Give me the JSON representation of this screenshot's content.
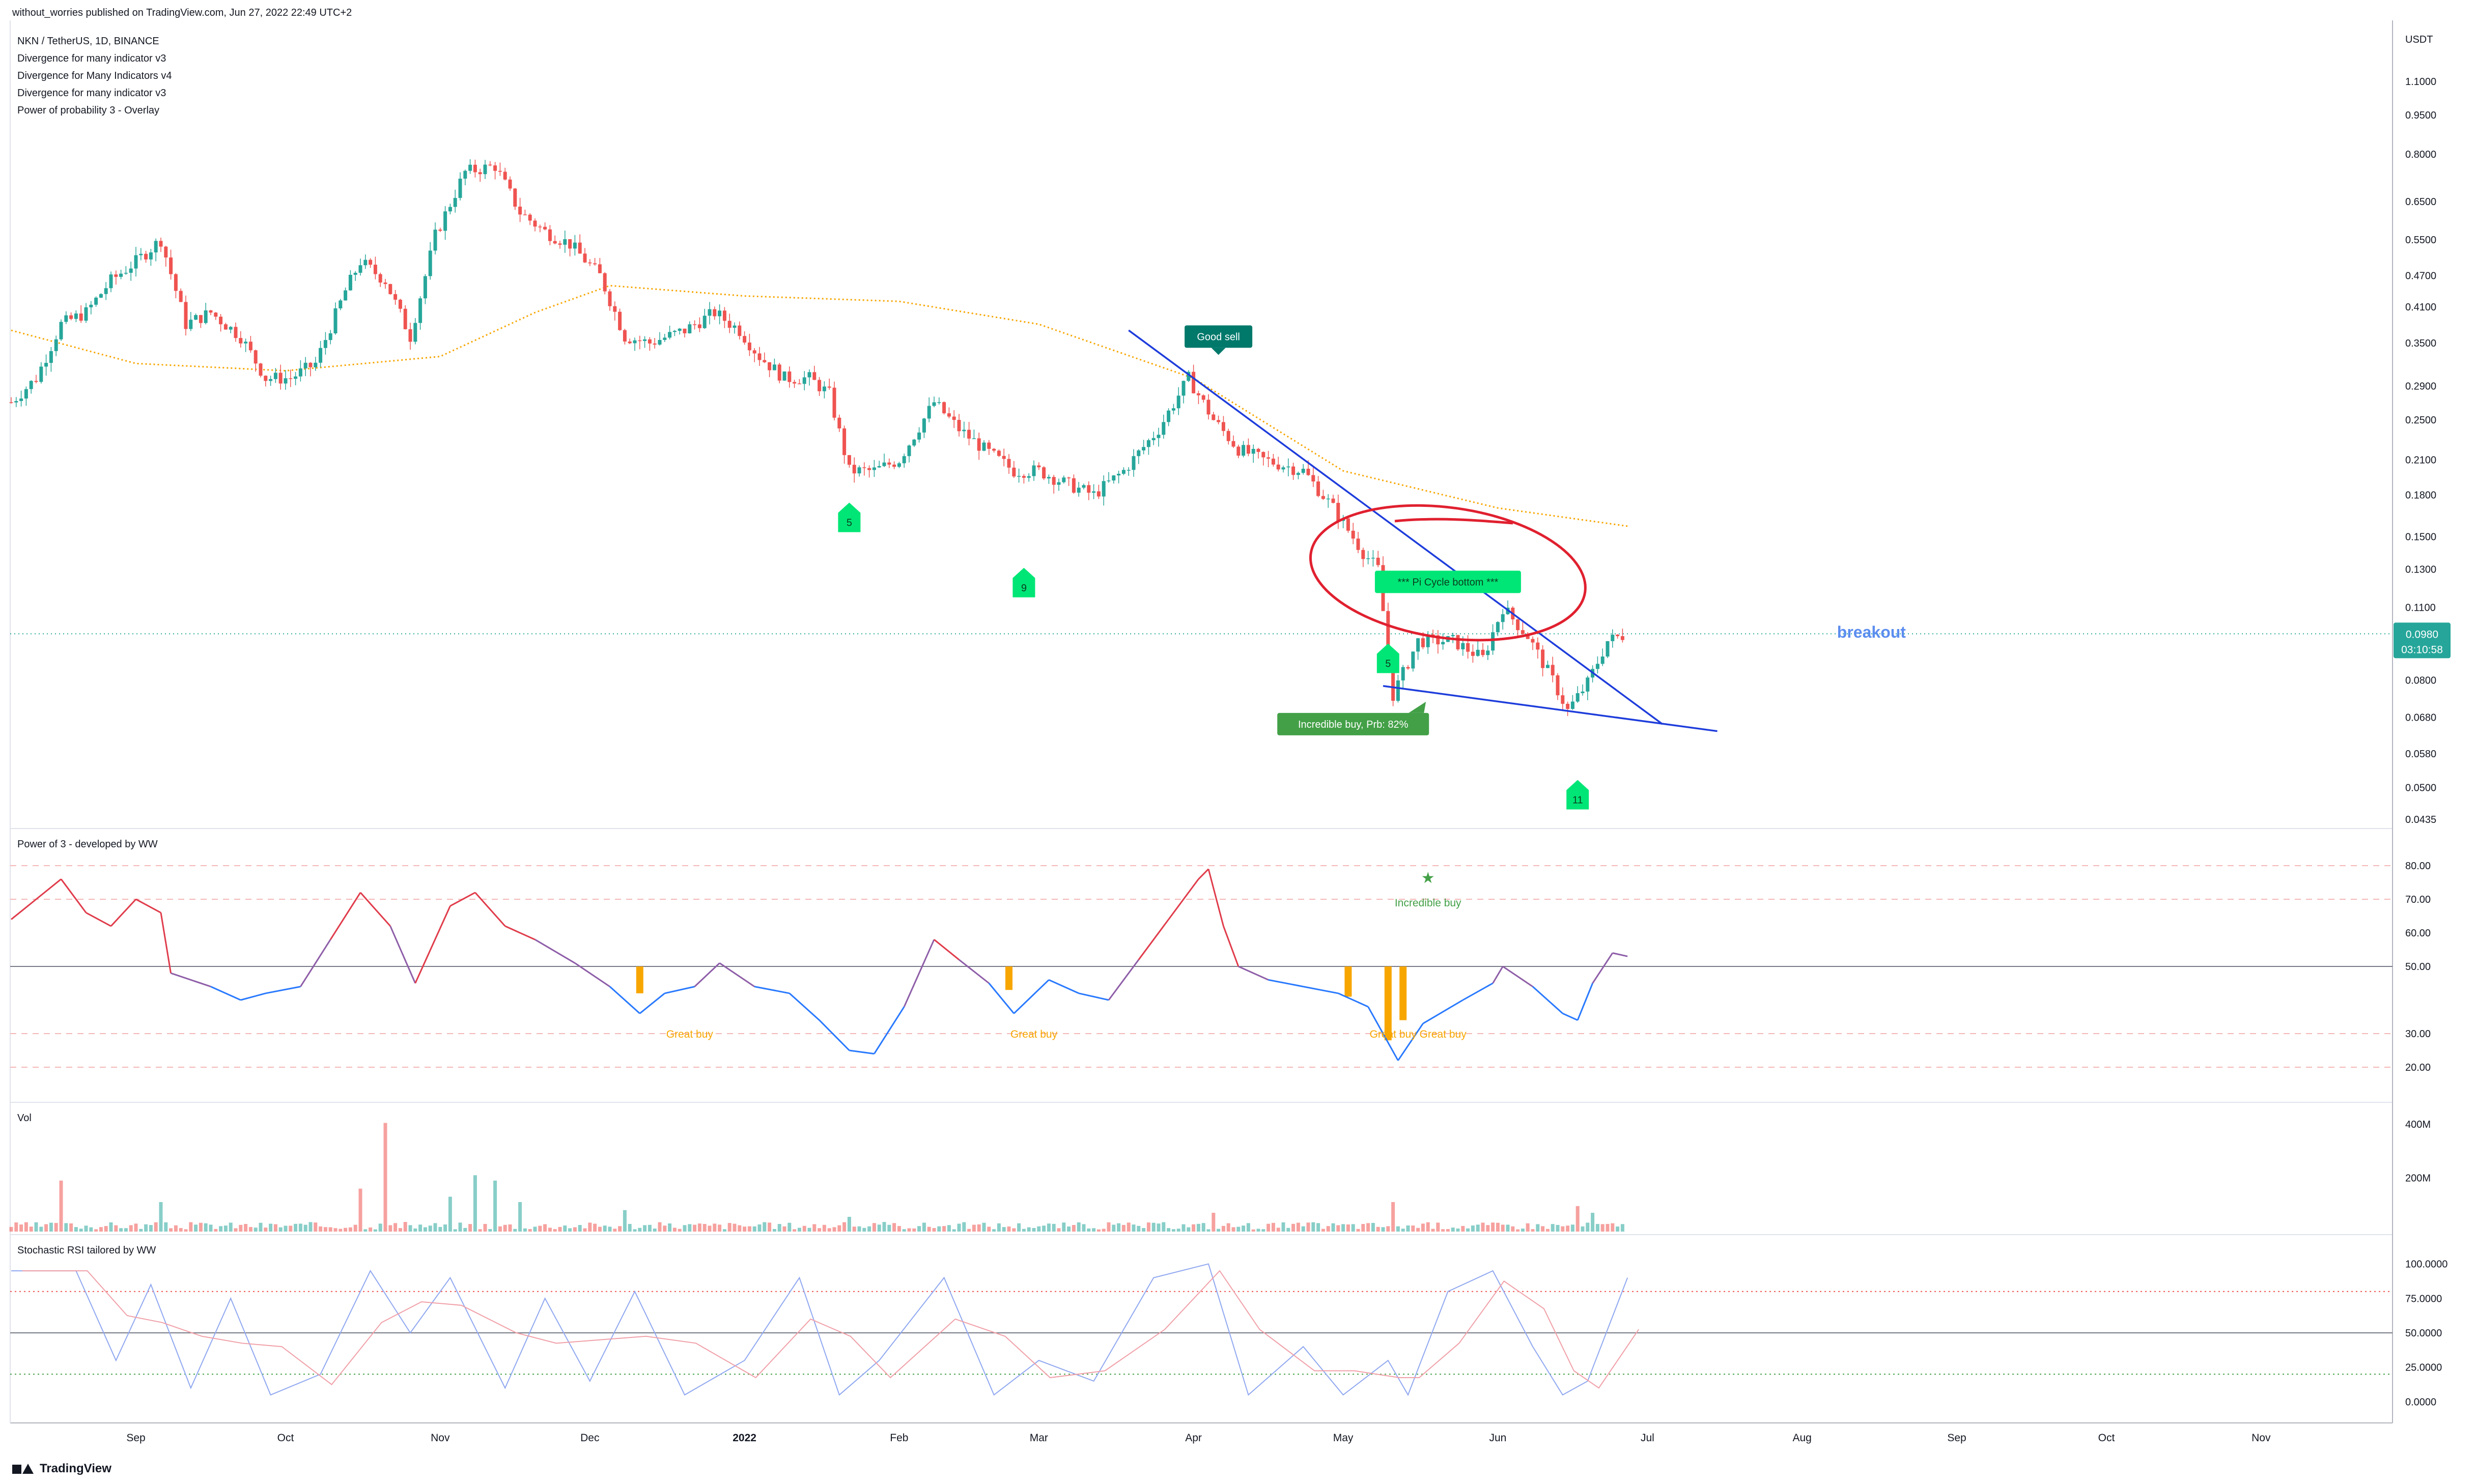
{
  "header": {
    "published": "without_worries published on TradingView.com, Jun 27, 2022 22:49 UTC+2",
    "symbol_line": "NKN / TetherUS, 1D, BINANCE",
    "indicators": [
      "Divergence for many indicator v3",
      "Divergence for Many Indicators v4",
      "Divergence for many indicator v3",
      "Power of probability 3 - Overlay"
    ]
  },
  "footer": {
    "brand": "TradingView"
  },
  "chart_data": [
    {
      "id": "price",
      "type": "candlestick",
      "title": "NKN / TetherUS, 1D, BINANCE",
      "currency_label": "USDT",
      "scale": "log",
      "ylim": [
        0.0435,
        1.1
      ],
      "yticks": [
        "1.1000",
        "0.9500",
        "0.8000",
        "0.6500",
        "0.5500",
        "0.4700",
        "0.4100",
        "0.3500",
        "0.2900",
        "0.2500",
        "0.2100",
        "0.1800",
        "0.1500",
        "0.1300",
        "0.1100",
        "0.0800",
        "0.0680",
        "0.0580",
        "0.0500",
        "0.0435"
      ],
      "xticks": [
        "Sep",
        "Oct",
        "Nov",
        "Dec",
        "2022",
        "Feb",
        "Mar",
        "Apr",
        "May",
        "Jun",
        "Jul",
        "Aug",
        "Sep",
        "Oct",
        "Nov"
      ],
      "last_price": "0.0980",
      "countdown": "03:10:58",
      "close_path": [
        [
          "2021-08-07",
          0.27
        ],
        [
          "2021-08-12",
          0.3
        ],
        [
          "2021-08-17",
          0.38
        ],
        [
          "2021-08-22",
          0.4
        ],
        [
          "2021-08-27",
          0.46
        ],
        [
          "2021-09-01",
          0.5
        ],
        [
          "2021-09-06",
          0.55
        ],
        [
          "2021-09-11",
          0.38
        ],
        [
          "2021-09-16",
          0.4
        ],
        [
          "2021-09-22",
          0.36
        ],
        [
          "2021-09-27",
          0.3
        ],
        [
          "2021-10-02",
          0.3
        ],
        [
          "2021-10-07",
          0.32
        ],
        [
          "2021-10-13",
          0.44
        ],
        [
          "2021-10-16",
          0.5
        ],
        [
          "2021-10-21",
          0.46
        ],
        [
          "2021-10-26",
          0.36
        ],
        [
          "2021-10-31",
          0.56
        ],
        [
          "2021-11-06",
          0.74
        ],
        [
          "2021-11-12",
          0.76
        ],
        [
          "2021-11-17",
          0.62
        ],
        [
          "2021-11-22",
          0.57
        ],
        [
          "2021-11-27",
          0.54
        ],
        [
          "2021-12-03",
          0.47
        ],
        [
          "2021-12-08",
          0.36
        ],
        [
          "2021-12-13",
          0.35
        ],
        [
          "2021-12-20",
          0.37
        ],
        [
          "2021-12-26",
          0.4
        ],
        [
          "2021-12-31",
          0.37
        ],
        [
          "2022-01-04",
          0.33
        ],
        [
          "2022-01-09",
          0.3
        ],
        [
          "2022-01-14",
          0.3
        ],
        [
          "2022-01-18",
          0.28
        ],
        [
          "2022-01-22",
          0.2
        ],
        [
          "2022-01-27",
          0.2
        ],
        [
          "2022-02-01",
          0.21
        ],
        [
          "2022-02-08",
          0.27
        ],
        [
          "2022-02-13",
          0.24
        ],
        [
          "2022-02-18",
          0.22
        ],
        [
          "2022-02-24",
          0.2
        ],
        [
          "2022-03-01",
          0.2
        ],
        [
          "2022-03-06",
          0.19
        ],
        [
          "2022-03-12",
          0.18
        ],
        [
          "2022-03-18",
          0.2
        ],
        [
          "2022-03-25",
          0.24
        ],
        [
          "2022-03-31",
          0.3
        ],
        [
          "2022-04-05",
          0.25
        ],
        [
          "2022-04-10",
          0.22
        ],
        [
          "2022-04-15",
          0.21
        ],
        [
          "2022-04-23",
          0.2
        ],
        [
          "2022-04-29",
          0.17
        ],
        [
          "2022-05-05",
          0.14
        ],
        [
          "2022-05-08",
          0.13
        ],
        [
          "2022-05-11",
          0.075
        ],
        [
          "2022-05-16",
          0.095
        ],
        [
          "2022-05-23",
          0.095
        ],
        [
          "2022-05-29",
          0.088
        ],
        [
          "2022-06-02",
          0.11
        ],
        [
          "2022-06-07",
          0.097
        ],
        [
          "2022-06-12",
          0.08
        ],
        [
          "2022-06-15",
          0.07
        ],
        [
          "2022-06-19",
          0.079
        ],
        [
          "2022-06-23",
          0.095
        ],
        [
          "2022-06-27",
          0.098
        ]
      ],
      "moving_average": [
        [
          "2021-08-07",
          0.37
        ],
        [
          "2021-09-01",
          0.32
        ],
        [
          "2021-10-01",
          0.31
        ],
        [
          "2021-11-01",
          0.33
        ],
        [
          "2021-11-20",
          0.4
        ],
        [
          "2021-12-05",
          0.45
        ],
        [
          "2022-01-01",
          0.43
        ],
        [
          "2022-02-01",
          0.42
        ],
        [
          "2022-03-01",
          0.38
        ],
        [
          "2022-04-01",
          0.3
        ],
        [
          "2022-05-01",
          0.2
        ],
        [
          "2022-06-01",
          0.17
        ],
        [
          "2022-06-27",
          0.157
        ]
      ],
      "trendlines": [
        {
          "from": [
            "2022-03-19",
            0.37
          ],
          "to": [
            "2022-07-04",
            0.066
          ],
          "color": "#1e3ddb"
        },
        {
          "from": [
            "2022-05-09",
            0.078
          ],
          "to": [
            "2022-07-15",
            0.064
          ],
          "color": "#1e3ddb"
        }
      ],
      "ellipse_center": [
        "2022-05-22",
        0.128
      ],
      "annotations": [
        {
          "text": "Good sell",
          "kind": "label-down",
          "color": "#00796b",
          "date": "2022-04-06",
          "price": 0.36
        },
        {
          "text": "*** Pi Cycle bottom ***",
          "kind": "label",
          "color": "#00e676",
          "date": "2022-05-22",
          "price": 0.123
        },
        {
          "text": "Incredible buy, Prb: 82%",
          "kind": "label-up",
          "color": "#43a047",
          "date": "2022-05-03",
          "price": 0.066
        },
        {
          "text": "5",
          "kind": "tag",
          "color": "#00e676",
          "date": "2022-01-22",
          "price": 0.165
        },
        {
          "text": "9",
          "kind": "tag",
          "color": "#00e676",
          "date": "2022-02-26",
          "price": 0.124
        },
        {
          "text": "5",
          "kind": "tag",
          "color": "#00e676",
          "date": "2022-05-10",
          "price": 0.089
        },
        {
          "text": "11",
          "kind": "tag",
          "color": "#00e676",
          "date": "2022-06-17",
          "price": 0.049
        },
        {
          "text": "breakout",
          "kind": "text",
          "color": "#5b8def",
          "date": "2022-08-08",
          "price": 0.0985
        }
      ]
    },
    {
      "id": "power3",
      "type": "line",
      "title": "Power of 3 - developed by WW",
      "ylim": [
        15,
        85
      ],
      "yticks": [
        "80.00",
        "70.00",
        "60.00",
        "50.00",
        "30.00",
        "20.00"
      ],
      "levels": [
        80,
        70,
        50,
        30,
        20
      ],
      "series": [
        [
          "2021-08-07",
          64
        ],
        [
          "2021-08-12",
          70
        ],
        [
          "2021-08-17",
          76
        ],
        [
          "2021-08-22",
          66
        ],
        [
          "2021-08-27",
          62
        ],
        [
          "2021-09-01",
          70
        ],
        [
          "2021-09-06",
          66
        ],
        [
          "2021-09-08",
          48
        ],
        [
          "2021-09-16",
          44
        ],
        [
          "2021-09-22",
          40
        ],
        [
          "2021-09-27",
          42
        ],
        [
          "2021-10-04",
          44
        ],
        [
          "2021-10-10",
          58
        ],
        [
          "2021-10-16",
          72
        ],
        [
          "2021-10-22",
          62
        ],
        [
          "2021-10-27",
          45
        ],
        [
          "2021-11-03",
          68
        ],
        [
          "2021-11-08",
          72
        ],
        [
          "2021-11-14",
          62
        ],
        [
          "2021-11-20",
          58
        ],
        [
          "2021-11-28",
          51
        ],
        [
          "2021-12-05",
          44
        ],
        [
          "2021-12-11",
          36
        ],
        [
          "2021-12-16",
          42
        ],
        [
          "2021-12-22",
          44
        ],
        [
          "2021-12-27",
          51
        ],
        [
          "2022-01-03",
          44
        ],
        [
          "2022-01-10",
          42
        ],
        [
          "2022-01-16",
          34
        ],
        [
          "2022-01-22",
          25
        ],
        [
          "2022-01-27",
          24
        ],
        [
          "2022-02-02",
          38
        ],
        [
          "2022-02-08",
          58
        ],
        [
          "2022-02-13",
          52
        ],
        [
          "2022-02-19",
          45
        ],
        [
          "2022-02-24",
          36
        ],
        [
          "2022-03-03",
          46
        ],
        [
          "2022-03-09",
          42
        ],
        [
          "2022-03-15",
          40
        ],
        [
          "2022-03-21",
          52
        ],
        [
          "2022-03-27",
          64
        ],
        [
          "2022-04-02",
          76
        ],
        [
          "2022-04-04",
          79
        ],
        [
          "2022-04-07",
          62
        ],
        [
          "2022-04-10",
          50
        ],
        [
          "2022-04-16",
          46
        ],
        [
          "2022-04-23",
          44
        ],
        [
          "2022-04-30",
          42
        ],
        [
          "2022-05-06",
          38
        ],
        [
          "2022-05-09",
          30
        ],
        [
          "2022-05-12",
          22
        ],
        [
          "2022-05-17",
          33
        ],
        [
          "2022-05-25",
          40
        ],
        [
          "2022-05-31",
          45
        ],
        [
          "2022-06-02",
          50
        ],
        [
          "2022-06-08",
          44
        ],
        [
          "2022-06-14",
          36
        ],
        [
          "2022-06-17",
          34
        ],
        [
          "2022-06-20",
          45
        ],
        [
          "2022-06-24",
          54
        ],
        [
          "2022-06-27",
          53
        ]
      ],
      "bars": [
        {
          "date": "2021-12-11",
          "from": 50,
          "to": 42
        },
        {
          "date": "2022-02-23",
          "from": 50,
          "to": 43
        },
        {
          "date": "2022-05-02",
          "from": 50,
          "to": 41
        },
        {
          "date": "2022-05-10",
          "from": 50,
          "to": 28
        },
        {
          "date": "2022-05-13",
          "from": 50,
          "to": 34
        }
      ],
      "annotations": [
        {
          "text": "Great buy",
          "date": "2021-12-21",
          "value": 30,
          "color": "#f7a600"
        },
        {
          "text": "Great buy",
          "date": "2022-02-28",
          "value": 30,
          "color": "#f7a600"
        },
        {
          "text": "Great buy",
          "date": "2022-05-11",
          "value": 30,
          "color": "#f7a600"
        },
        {
          "text": "Great buy",
          "date": "2022-05-21",
          "value": 30,
          "color": "#f7a600"
        },
        {
          "text": "Incredible buy",
          "date": "2022-05-18",
          "value": 70,
          "color": "#43a047"
        }
      ]
    },
    {
      "id": "volume",
      "type": "bar",
      "title": "Vol",
      "yticks": [
        "400M",
        "200M"
      ],
      "ylim": [
        0,
        440
      ],
      "unit": "M",
      "spikes": [
        [
          "2021-08-17",
          190
        ],
        [
          "2021-09-06",
          110
        ],
        [
          "2021-10-16",
          160
        ],
        [
          "2021-10-21",
          405
        ],
        [
          "2021-11-03",
          130
        ],
        [
          "2021-11-08",
          210
        ],
        [
          "2021-11-12",
          190
        ],
        [
          "2021-11-17",
          110
        ],
        [
          "2021-12-08",
          80
        ],
        [
          "2022-01-22",
          55
        ],
        [
          "2022-04-05",
          70
        ],
        [
          "2022-05-11",
          110
        ],
        [
          "2022-06-17",
          95
        ],
        [
          "2022-06-20",
          70
        ]
      ]
    },
    {
      "id": "stochrsi",
      "type": "line",
      "title": "Stochastic RSI tailored by WW",
      "ylim": [
        -5,
        105
      ],
      "yticks": [
        "100.0000",
        "75.0000",
        "50.0000",
        "25.0000",
        "0.0000"
      ],
      "levels": [
        80,
        50,
        20
      ],
      "k_line": [
        [
          "2021-08-07",
          95
        ],
        [
          "2021-08-20",
          95
        ],
        [
          "2021-08-28",
          30
        ],
        [
          "2021-09-04",
          85
        ],
        [
          "2021-09-12",
          10
        ],
        [
          "2021-09-20",
          75
        ],
        [
          "2021-09-28",
          5
        ],
        [
          "2021-10-08",
          20
        ],
        [
          "2021-10-18",
          95
        ],
        [
          "2021-10-26",
          50
        ],
        [
          "2021-11-03",
          90
        ],
        [
          "2021-11-14",
          10
        ],
        [
          "2021-11-22",
          75
        ],
        [
          "2021-12-01",
          15
        ],
        [
          "2021-12-10",
          80
        ],
        [
          "2021-12-20",
          5
        ],
        [
          "2022-01-01",
          30
        ],
        [
          "2022-01-12",
          90
        ],
        [
          "2022-01-20",
          5
        ],
        [
          "2022-01-28",
          30
        ],
        [
          "2022-02-10",
          90
        ],
        [
          "2022-02-20",
          5
        ],
        [
          "2022-03-01",
          30
        ],
        [
          "2022-03-12",
          15
        ],
        [
          "2022-03-24",
          90
        ],
        [
          "2022-04-04",
          100
        ],
        [
          "2022-04-12",
          5
        ],
        [
          "2022-04-23",
          40
        ],
        [
          "2022-05-01",
          5
        ],
        [
          "2022-05-10",
          30
        ],
        [
          "2022-05-14",
          5
        ],
        [
          "2022-05-22",
          80
        ],
        [
          "2022-05-31",
          95
        ],
        [
          "2022-06-08",
          40
        ],
        [
          "2022-06-14",
          5
        ],
        [
          "2022-06-19",
          15
        ],
        [
          "2022-06-27",
          90
        ]
      ]
    }
  ],
  "colors": {
    "up": "#26a69a",
    "down": "#ef5350",
    "ma": "#f7a600",
    "trendline": "#1e3ddb",
    "ellipse": "#e0202f",
    "breakout": "#5b8def",
    "last_price_bg": "#26a69a",
    "power_high": "#e03c4b",
    "power_low": "#2979ff",
    "power_mid": "#8e5ea8",
    "buy_bar": "#f7a600",
    "axis_text": "#131722",
    "grid_dash": "#f5b7b7"
  }
}
